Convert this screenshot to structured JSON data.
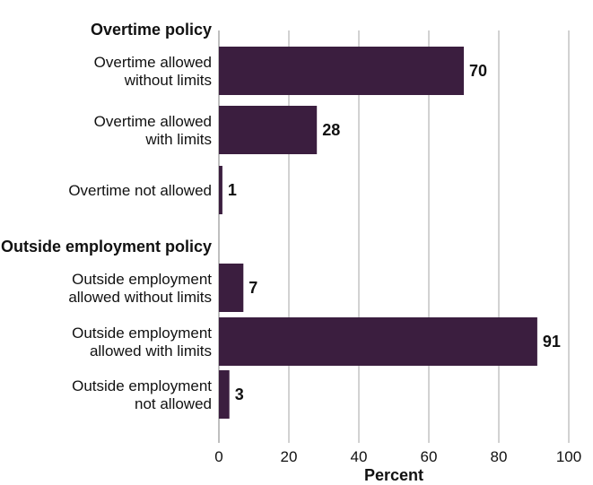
{
  "chart_data": {
    "type": "bar",
    "orientation": "horizontal",
    "groups": [
      {
        "label": "Overtime policy",
        "bars": [
          {
            "label": [
              "Overtime allowed",
              "without limits"
            ],
            "value": 70,
            "value_label": "70"
          },
          {
            "label": [
              "Overtime allowed",
              "with limits"
            ],
            "value": 28,
            "value_label": "28"
          },
          {
            "label": [
              "Overtime not allowed"
            ],
            "value": 1,
            "value_label": "1"
          }
        ]
      },
      {
        "label": "Outside employment policy",
        "bars": [
          {
            "label": [
              "Outside employment",
              "allowed without limits"
            ],
            "value": 7,
            "value_label": "7"
          },
          {
            "label": [
              "Outside employment",
              "allowed with limits"
            ],
            "value": 91,
            "value_label": "91"
          },
          {
            "label": [
              "Outside employment",
              "not allowed"
            ],
            "value": 3,
            "value_label": "3"
          }
        ]
      }
    ],
    "xlabel": "Percent",
    "xlim": [
      0,
      100
    ],
    "xticks": [
      0,
      20,
      40,
      60,
      80,
      100
    ],
    "grid": true,
    "colors": {
      "bar": "#3b1e3f"
    }
  }
}
